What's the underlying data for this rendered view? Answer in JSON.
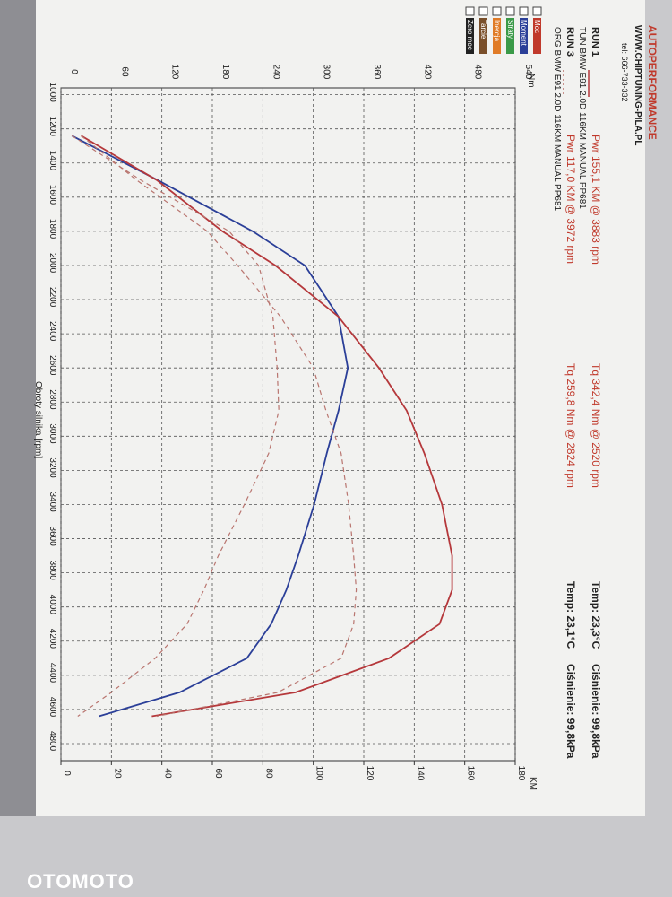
{
  "header": {
    "company": "AUTOPERFORMANCE",
    "website": "WWW.CHIPTUNING-PILA.PL",
    "phone": "tel: 666-733-332"
  },
  "runs": [
    {
      "run": "RUN 1",
      "power": "Pwr 155,1 KM @ 3883 rpm",
      "torque": "Tq 342,4 Nm @ 2520 rpm",
      "temp": "Temp: 23,3°C",
      "pressure": "Ciśnienie: 99,8kPa",
      "description": "TUN BMW E91 2.0D 116KM MANUAL PP681"
    },
    {
      "run": "RUN 3",
      "power": "Pwr 117,0 KM @ 3972 rpm",
      "torque": "Tq 259,8 Nm @ 2824 rpm",
      "temp": "Temp: 23,1°C",
      "pressure": "Ciśnienie: 99,8kPa",
      "description": "ORG BMW E91 2.0D 116KM MANUAL PP681"
    }
  ],
  "options": [
    "Moc",
    "Moment",
    "Straty",
    "Inercja",
    "Tarcie",
    "Zero moc"
  ],
  "chart_data": {
    "type": "line",
    "xlabel": "Obroty silnika [rpm]",
    "ylabel": "Nm",
    "y2label": "KM",
    "x": [
      1240,
      1500,
      1800,
      2000,
      2300,
      2600,
      2850,
      3100,
      3400,
      3700,
      3900,
      4100,
      4300,
      4500,
      4640
    ],
    "series": [
      {
        "color": "#2b3f98",
        "dash": false,
        "values": [
          13,
          115,
          228,
          290,
          330,
          341,
          330,
          316,
          301,
          282,
          268,
          250,
          221,
          141,
          45
        ]
      },
      {
        "color": "#b5383b",
        "dash": false,
        "axis": "y2",
        "values": [
          8,
          38,
          64,
          85,
          110,
          126,
          137,
          144,
          151,
          155,
          155,
          150,
          130,
          93,
          36
        ]
      },
      {
        "color": "#b9756f",
        "dash": true,
        "values": [
          13,
          95,
          200,
          235,
          252,
          257,
          259,
          247,
          218,
          187,
          170,
          150,
          112,
          60,
          20
        ]
      },
      {
        "color": "#b9756f",
        "dash": true,
        "axis": "y2",
        "values": [
          8,
          30,
          58,
          70,
          87,
          100,
          105,
          111,
          114,
          116,
          117,
          116,
          111,
          86,
          38
        ]
      }
    ],
    "xlim": [
      960,
      4900
    ],
    "xticks": [
      1000,
      1200,
      1400,
      1600,
      1800,
      2000,
      2200,
      2400,
      2600,
      2800,
      3000,
      3200,
      3400,
      3600,
      3800,
      4000,
      4200,
      4400,
      4600,
      4800
    ],
    "ylim": [
      0,
      540
    ],
    "yticks": [
      0,
      60,
      120,
      180,
      240,
      300,
      360,
      420,
      480,
      540
    ],
    "y2lim": [
      0,
      180
    ],
    "y2ticks": [
      0,
      20,
      40,
      60,
      80,
      100,
      120,
      140,
      160,
      180
    ],
    "grid": true
  },
  "watermark": "OTOMOTO"
}
